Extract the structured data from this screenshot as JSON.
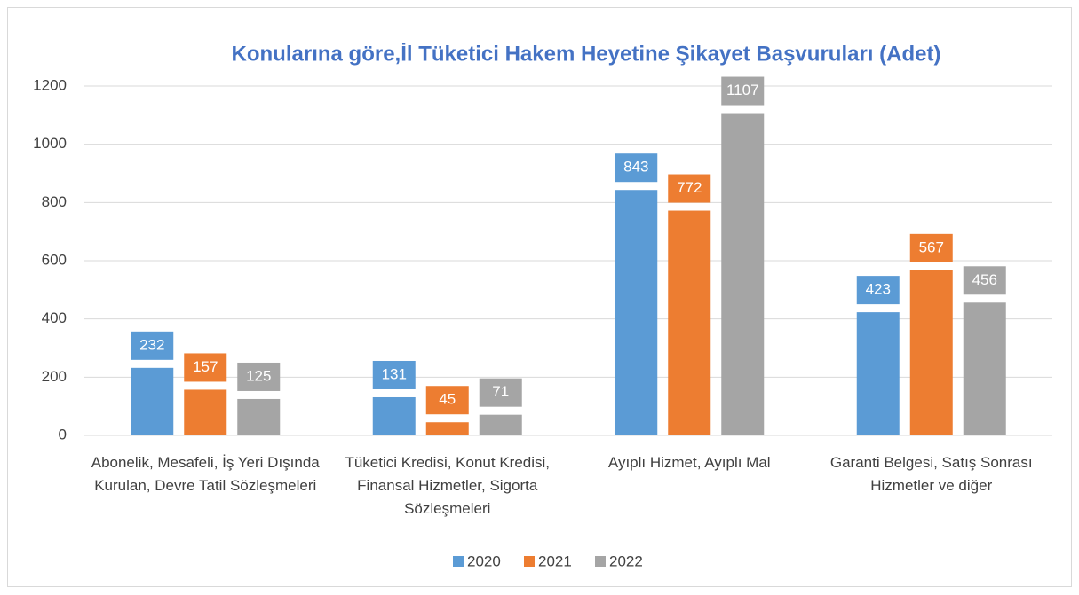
{
  "chart_data": {
    "type": "bar",
    "title": "Konularına göre,İl Tüketici Hakem Heyetine Şikayet Başvuruları (Adet)",
    "categories": [
      "Abonelik, Mesafeli, İş Yeri Dışında Kurulan, Devre Tatil Sözleşmeleri",
      "Tüketici Kredisi, Konut Kredisi, Finansal Hizmetler, Sigorta Sözleşmeleri",
      "Ayıplı Hizmet, Ayıplı Mal",
      "Garanti Belgesi, Satış Sonrası Hizmetler ve diğer"
    ],
    "series": [
      {
        "name": "2020",
        "color": "#5b9bd5",
        "values": [
          232,
          131,
          843,
          423
        ]
      },
      {
        "name": "2021",
        "color": "#ed7d31",
        "values": [
          157,
          45,
          772,
          567
        ]
      },
      {
        "name": "2022",
        "color": "#a5a5a5",
        "values": [
          125,
          71,
          1107,
          456
        ]
      }
    ],
    "ylim": [
      0,
      1200
    ],
    "yticks": [
      0,
      200,
      400,
      600,
      800,
      1000,
      1200
    ],
    "grid": true,
    "legend": "bottom"
  }
}
